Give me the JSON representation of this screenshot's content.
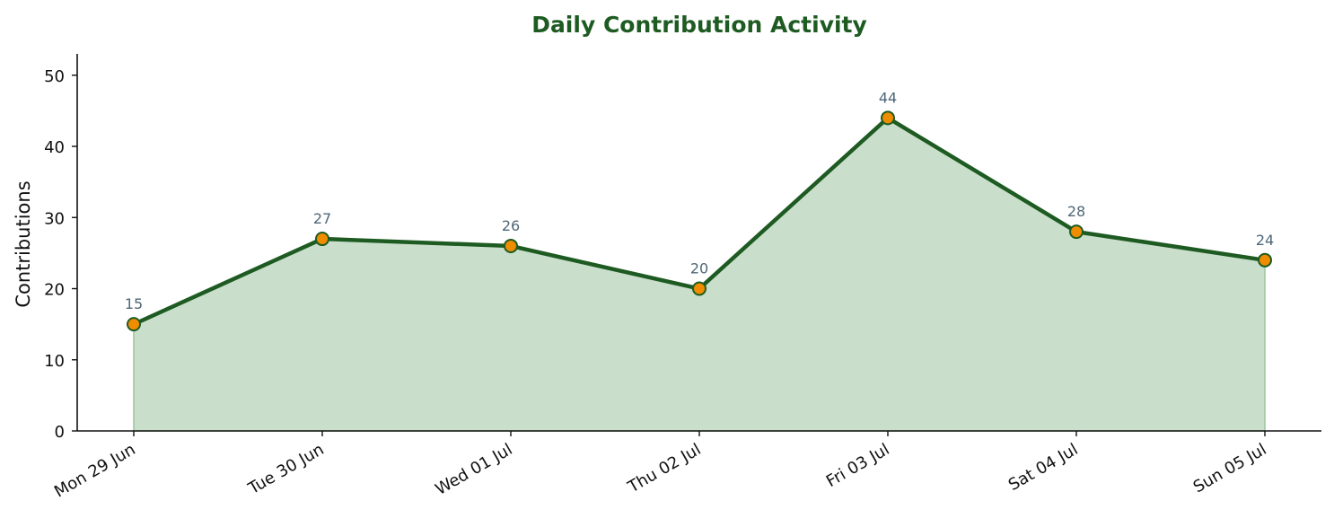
{
  "chart_data": {
    "type": "area",
    "title": "Daily Contribution Activity",
    "xlabel": "",
    "ylabel": "Contributions",
    "categories": [
      "Mon 29 Jun",
      "Tue 30 Jun",
      "Wed 01 Jul",
      "Thu 02 Jul",
      "Fri 03 Jul",
      "Sat 04 Jul",
      "Sun 05 Jul"
    ],
    "series": [
      {
        "values": [
          15,
          27,
          26,
          20,
          44,
          28,
          24
        ]
      }
    ],
    "data_labels": [
      "15",
      "27",
      "26",
      "20",
      "44",
      "28",
      "24"
    ],
    "ylim": [
      0,
      53
    ],
    "yticks": [
      0,
      10,
      20,
      30,
      40,
      50
    ],
    "ytick_labels": [
      "0",
      "10",
      "20",
      "30",
      "40",
      "50"
    ],
    "grid": false,
    "legend": "none",
    "x_tick_rotation_deg": 30,
    "colors": {
      "title": "#1e5b22",
      "line": "#1e5b22",
      "area_fill": "#cadfcb",
      "area_edge": "#9cc49d",
      "marker_fill": "#f08c00",
      "marker_edge": "#1e5b22",
      "data_label": "#4f6778",
      "axis": "#111111"
    }
  }
}
